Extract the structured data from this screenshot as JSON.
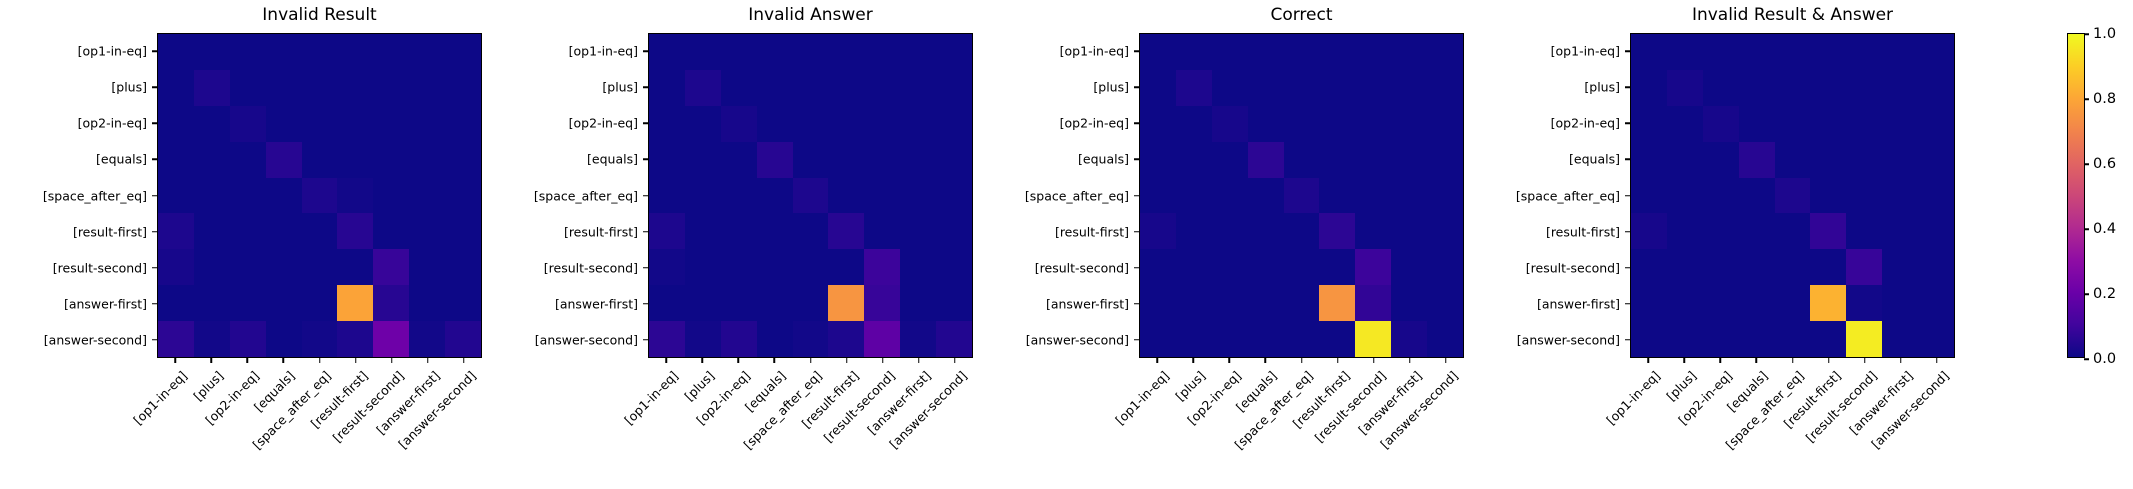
{
  "figure": {
    "background_color": "#ffffff",
    "num_panels": 4
  },
  "chart_data": [
    {
      "type": "heatmap",
      "title": "Invalid Result",
      "x_labels": [
        "[op1-in-eq]",
        "[plus]",
        "[op2-in-eq]",
        "[equals]",
        "[space_after_eq]",
        "[result-first]",
        "[result-second]",
        "[answer-first]",
        "[answer-second]"
      ],
      "y_labels": [
        "[op1-in-eq]",
        "[plus]",
        "[op2-in-eq]",
        "[equals]",
        "[space_after_eq]",
        "[result-first]",
        "[result-second]",
        "[answer-first]",
        "[answer-second]"
      ],
      "value_range": [
        0.0,
        1.0
      ],
      "values": [
        [
          0,
          0,
          0,
          0,
          0,
          0,
          0,
          0,
          0
        ],
        [
          0,
          0.03,
          0,
          0,
          0,
          0,
          0,
          0,
          0
        ],
        [
          0,
          0,
          0.02,
          0,
          0,
          0,
          0,
          0,
          0
        ],
        [
          0,
          0,
          0,
          0.05,
          0,
          0,
          0,
          0,
          0
        ],
        [
          0,
          0,
          0,
          0,
          0.03,
          0.01,
          0,
          0,
          0
        ],
        [
          0.03,
          0,
          0,
          0,
          0,
          0.05,
          0,
          0,
          0
        ],
        [
          0.02,
          0,
          0,
          0,
          0,
          0,
          0.08,
          0,
          0
        ],
        [
          0,
          0,
          0,
          0,
          0,
          0.79,
          0.05,
          0,
          0
        ],
        [
          0.06,
          0.01,
          0.04,
          0,
          0.01,
          0.03,
          0.21,
          0.01,
          0.04
        ]
      ]
    },
    {
      "type": "heatmap",
      "title": "Invalid Answer",
      "x_labels": [
        "[op1-in-eq]",
        "[plus]",
        "[op2-in-eq]",
        "[equals]",
        "[space_after_eq]",
        "[result-first]",
        "[result-second]",
        "[answer-first]",
        "[answer-second]"
      ],
      "y_labels": [
        "[op1-in-eq]",
        "[plus]",
        "[op2-in-eq]",
        "[equals]",
        "[space_after_eq]",
        "[result-first]",
        "[result-second]",
        "[answer-first]",
        "[answer-second]"
      ],
      "value_range": [
        0.0,
        1.0
      ],
      "values": [
        [
          0,
          0,
          0,
          0,
          0,
          0,
          0,
          0,
          0
        ],
        [
          0,
          0.03,
          0,
          0,
          0,
          0,
          0,
          0,
          0
        ],
        [
          0,
          0,
          0.02,
          0,
          0,
          0,
          0,
          0,
          0
        ],
        [
          0,
          0,
          0,
          0.05,
          0,
          0,
          0,
          0,
          0
        ],
        [
          0,
          0,
          0,
          0,
          0.03,
          0,
          0,
          0,
          0
        ],
        [
          0.03,
          0,
          0,
          0,
          0,
          0.05,
          0,
          0,
          0
        ],
        [
          0.01,
          0,
          0,
          0,
          0,
          0,
          0.09,
          0,
          0
        ],
        [
          0,
          0,
          0,
          0,
          0,
          0.75,
          0.08,
          0,
          0
        ],
        [
          0.06,
          0.01,
          0.04,
          0,
          0.01,
          0.03,
          0.17,
          0.01,
          0.04
        ]
      ]
    },
    {
      "type": "heatmap",
      "title": "Correct",
      "x_labels": [
        "[op1-in-eq]",
        "[plus]",
        "[op2-in-eq]",
        "[equals]",
        "[space_after_eq]",
        "[result-first]",
        "[result-second]",
        "[answer-first]",
        "[answer-second]"
      ],
      "y_labels": [
        "[op1-in-eq]",
        "[plus]",
        "[op2-in-eq]",
        "[equals]",
        "[space_after_eq]",
        "[result-first]",
        "[result-second]",
        "[answer-first]",
        "[answer-second]"
      ],
      "value_range": [
        0.0,
        1.0
      ],
      "values": [
        [
          0,
          0,
          0,
          0,
          0,
          0,
          0,
          0,
          0
        ],
        [
          0,
          0.03,
          0,
          0,
          0,
          0,
          0,
          0,
          0
        ],
        [
          0,
          0,
          0.02,
          0,
          0,
          0,
          0,
          0,
          0
        ],
        [
          0,
          0,
          0,
          0.06,
          0,
          0,
          0,
          0,
          0
        ],
        [
          0,
          0,
          0,
          0,
          0.03,
          0,
          0,
          0,
          0
        ],
        [
          0.02,
          0,
          0,
          0,
          0,
          0.06,
          0,
          0,
          0
        ],
        [
          0,
          0,
          0,
          0,
          0,
          0,
          0.09,
          0,
          0
        ],
        [
          0,
          0,
          0,
          0,
          0,
          0.75,
          0.07,
          0,
          0
        ],
        [
          0,
          0,
          0,
          0,
          0,
          0,
          0.96,
          0.02,
          0
        ]
      ]
    },
    {
      "type": "heatmap",
      "title": "Invalid Result & Answer",
      "x_labels": [
        "[op1-in-eq]",
        "[plus]",
        "[op2-in-eq]",
        "[equals]",
        "[space_after_eq]",
        "[result-first]",
        "[result-second]",
        "[answer-first]",
        "[answer-second]"
      ],
      "y_labels": [
        "[op1-in-eq]",
        "[plus]",
        "[op2-in-eq]",
        "[equals]",
        "[space_after_eq]",
        "[result-first]",
        "[result-second]",
        "[answer-first]",
        "[answer-second]"
      ],
      "value_range": [
        0.0,
        1.0
      ],
      "values": [
        [
          0,
          0,
          0,
          0,
          0,
          0,
          0,
          0,
          0
        ],
        [
          0,
          0.02,
          0,
          0,
          0,
          0,
          0,
          0,
          0
        ],
        [
          0,
          0,
          0.02,
          0,
          0,
          0,
          0,
          0,
          0
        ],
        [
          0,
          0,
          0,
          0.05,
          0,
          0,
          0,
          0,
          0
        ],
        [
          0,
          0,
          0,
          0,
          0.03,
          0,
          0,
          0,
          0
        ],
        [
          0.02,
          0,
          0,
          0,
          0,
          0.07,
          0,
          0,
          0
        ],
        [
          0,
          0,
          0,
          0,
          0,
          0,
          0.08,
          0,
          0
        ],
        [
          0,
          0,
          0,
          0,
          0,
          0.83,
          0.01,
          0,
          0
        ],
        [
          0,
          0,
          0,
          0,
          0,
          0,
          0.97,
          0,
          0
        ]
      ]
    }
  ],
  "colorbar": {
    "colormap": "plasma",
    "tick_labels": [
      "0.0",
      "0.2",
      "0.4",
      "0.6",
      "0.8",
      "1.0"
    ],
    "tick_values": [
      0.0,
      0.2,
      0.4,
      0.6,
      0.8,
      1.0
    ],
    "gradient_stops": [
      "#0d0887",
      "#41049d",
      "#6a00a8",
      "#8f0da4",
      "#b12a90",
      "#cc4778",
      "#e16462",
      "#f2844b",
      "#fca636",
      "#fcce25",
      "#f0f921"
    ]
  }
}
